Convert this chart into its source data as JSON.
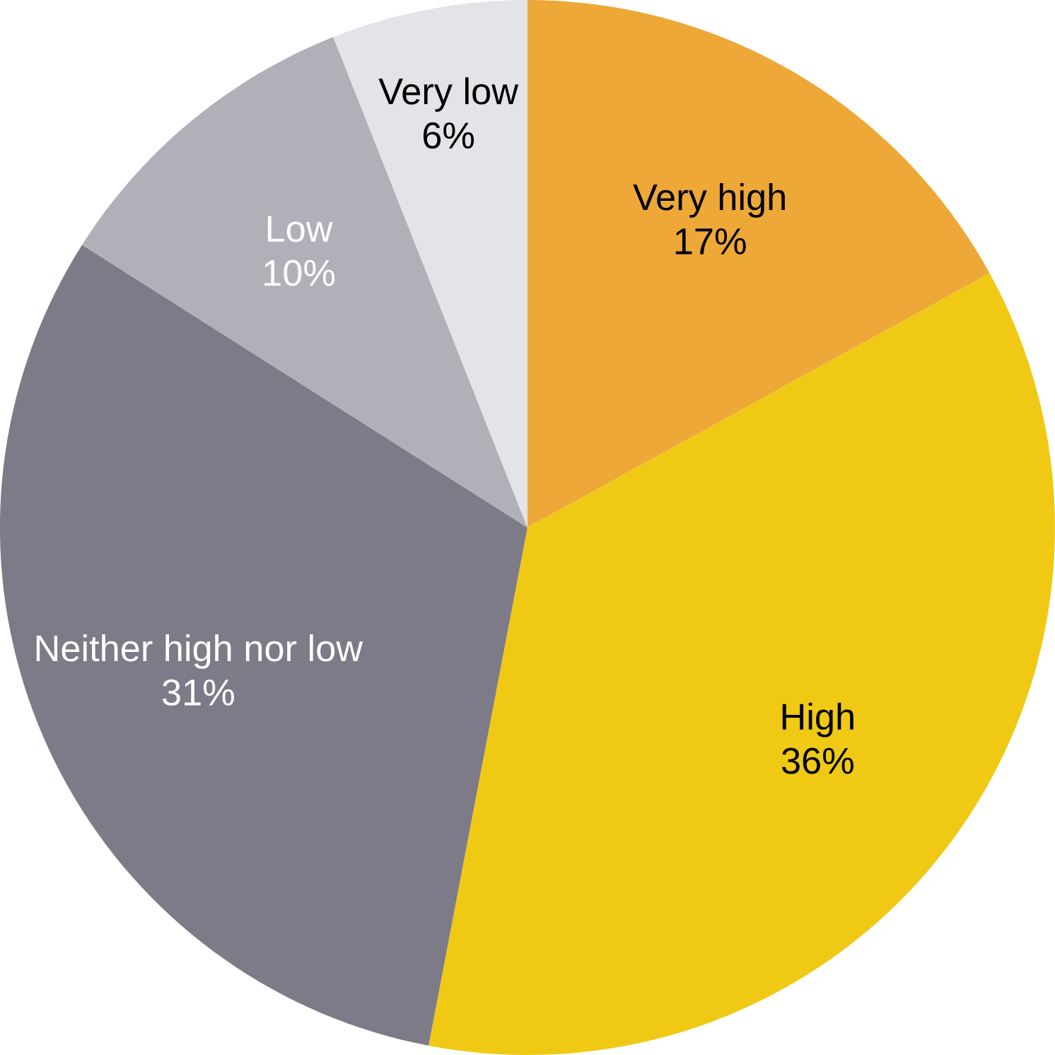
{
  "chart_data": {
    "type": "pie",
    "categories": [
      "Very high",
      "High",
      "Neither high nor low",
      "Low",
      "Very low"
    ],
    "values": [
      17,
      36,
      31,
      10,
      6
    ],
    "value_labels": [
      "17%",
      "36%",
      "31%",
      "10%",
      "6%"
    ],
    "colors": [
      "#eda838",
      "#f0c915",
      "#7c7b87",
      "#b1b0b8",
      "#e4e3e7"
    ]
  }
}
